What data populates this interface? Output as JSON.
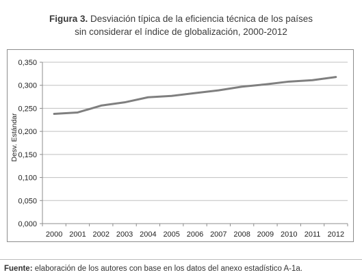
{
  "figure": {
    "label": "Figura 3.",
    "title_line1": "Desviación típica de la eficiencia técnica de los países",
    "title_line2": "sin considerar el índice de globalización, 2000-2012"
  },
  "source": {
    "label": "Fuente:",
    "text": "elaboración de los autores con base en los datos del anexo estadístico A-1a."
  },
  "chart_data": {
    "type": "line",
    "title": "",
    "xlabel": "",
    "ylabel": "Desv. Estándar",
    "categories": [
      "2000",
      "2001",
      "2002",
      "2003",
      "2004",
      "2005",
      "2006",
      "2007",
      "2008",
      "2009",
      "2010",
      "2011",
      "2012"
    ],
    "series": [
      {
        "values": [
          0.238,
          0.241,
          0.256,
          0.263,
          0.274,
          0.277,
          0.283,
          0.289,
          0.297,
          0.302,
          0.308,
          0.311,
          0.318
        ]
      }
    ],
    "ylim": [
      0,
      0.35
    ],
    "y_ticks": [
      "0,000",
      "0,050",
      "0,100",
      "0,150",
      "0,200",
      "0,250",
      "0,300",
      "0,350"
    ],
    "grid": "horizontal",
    "legend": "none",
    "line_color": "#7f7f7f",
    "grid_color": "#bfbfbf"
  }
}
